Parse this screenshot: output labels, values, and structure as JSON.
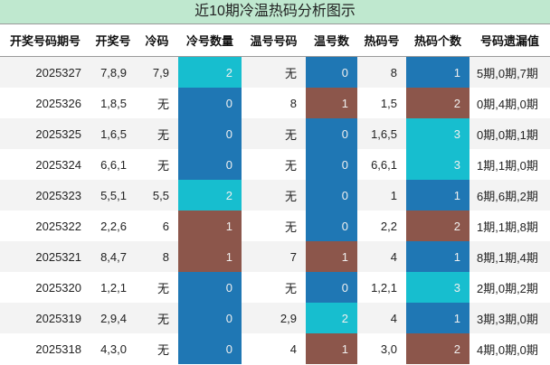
{
  "header": {
    "title": "近10期冷温热码分析图示"
  },
  "table": {
    "columns": [
      "开奖号码期号",
      "开奖号",
      "冷码",
      "冷号数量",
      "温号号码",
      "温号数",
      "热码号",
      "热码个数",
      "号码遗漏值"
    ],
    "colored_columns": [
      3,
      5,
      7
    ],
    "rows": [
      [
        "2025327",
        "7,8,9",
        "7,9",
        "2",
        "无",
        "0",
        "8",
        "1",
        "5期,0期,7期"
      ],
      [
        "2025326",
        "1,8,5",
        "无",
        "0",
        "8",
        "1",
        "1,5",
        "2",
        "0期,4期,0期"
      ],
      [
        "2025325",
        "1,6,5",
        "无",
        "0",
        "无",
        "0",
        "1,6,5",
        "3",
        "0期,0期,1期"
      ],
      [
        "2025324",
        "6,6,1",
        "无",
        "0",
        "无",
        "0",
        "6,6,1",
        "3",
        "1期,1期,0期"
      ],
      [
        "2025323",
        "5,5,1",
        "5,5",
        "2",
        "无",
        "0",
        "1",
        "1",
        "6期,6期,2期"
      ],
      [
        "2025322",
        "2,2,6",
        "6",
        "1",
        "无",
        "0",
        "2,2",
        "2",
        "1期,1期,8期"
      ],
      [
        "2025321",
        "8,4,7",
        "8",
        "1",
        "7",
        "1",
        "4",
        "1",
        "8期,1期,4期"
      ],
      [
        "2025320",
        "1,2,1",
        "无",
        "0",
        "无",
        "0",
        "1,2,1",
        "3",
        "2期,0期,2期"
      ],
      [
        "2025319",
        "2,9,4",
        "无",
        "0",
        "2,9",
        "2",
        "4",
        "1",
        "3期,3期,0期"
      ],
      [
        "2025318",
        "4,3,0",
        "无",
        "0",
        "4",
        "1",
        "3,0",
        "2",
        "4期,0期,0期"
      ]
    ],
    "cell_colors": [
      [
        "#17becf",
        "#1f77b4",
        "#1f77b4"
      ],
      [
        "#1f77b4",
        "#8c564b",
        "#8c564b"
      ],
      [
        "#1f77b4",
        "#1f77b4",
        "#17becf"
      ],
      [
        "#1f77b4",
        "#1f77b4",
        "#17becf"
      ],
      [
        "#17becf",
        "#1f77b4",
        "#1f77b4"
      ],
      [
        "#8c564b",
        "#1f77b4",
        "#8c564b"
      ],
      [
        "#8c564b",
        "#8c564b",
        "#1f77b4"
      ],
      [
        "#1f77b4",
        "#1f77b4",
        "#17becf"
      ],
      [
        "#1f77b4",
        "#17becf",
        "#1f77b4"
      ],
      [
        "#1f77b4",
        "#8c564b",
        "#8c564b"
      ]
    ]
  }
}
